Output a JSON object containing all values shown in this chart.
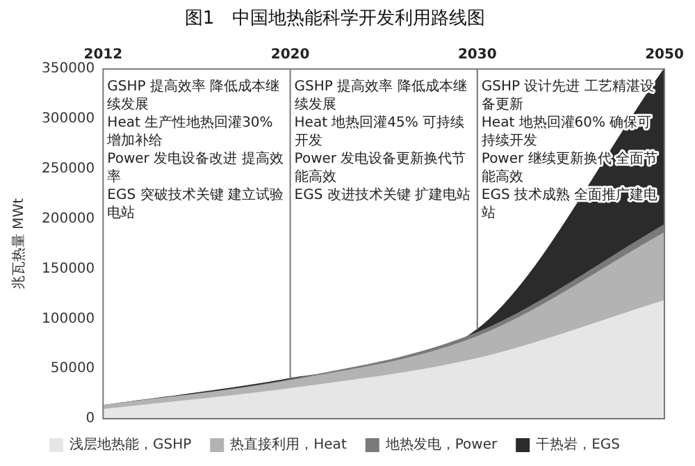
{
  "chart_data": {
    "type": "area",
    "title": "图1　中国地热能科学开发利用路线图",
    "ylabel": "兆瓦热量 MWt",
    "categories": [
      "2012",
      "2020",
      "2030",
      "2050"
    ],
    "stacked": true,
    "series": [
      {
        "name": "浅层地热能，GSHP",
        "color": "#e6e6e6",
        "values": [
          9000,
          30000,
          60000,
          118000
        ]
      },
      {
        "name": "热直接利用，Heat",
        "color": "#b3b3b3",
        "values": [
          4000,
          8000,
          22000,
          68000
        ]
      },
      {
        "name": "地热发电，Power",
        "color": "#7a7a7a",
        "values": [
          0,
          1000,
          4000,
          8000
        ]
      },
      {
        "name": "干热岩，EGS",
        "color": "#2b2b2b",
        "values": [
          0,
          1000,
          3000,
          156000
        ]
      }
    ],
    "ylim": [
      0,
      350000
    ],
    "yticks": [
      0,
      50000,
      100000,
      150000,
      200000,
      250000,
      300000,
      350000
    ],
    "ref_lines": [
      {
        "axis": "x",
        "value": "2020"
      },
      {
        "axis": "x",
        "value": "2030"
      }
    ],
    "annotations": [
      "GSHP 提高效率 降低成本继续发展",
      "Heat 生产性地热回灌30%增加补给",
      "Power 发电设备改进 提高效率",
      "EGS 突破技术关键 建立试验电站",
      "GSHP 提高效率 降低成本继续发展",
      "Heat 地热回灌45% 可持续开发",
      "Power 发电设备更新换代节能高效",
      "EGS 改进技术关键 扩建电站",
      "GSHP 设计先进 工艺精湛设备更新",
      "Heat 地热回灌60% 确保可持续开发",
      "Power 继续更新换代 全面节能高效",
      "EGS 技术成熟 全面推广建电站"
    ],
    "grid": false,
    "legend": "bottom",
    "marker": "none"
  }
}
